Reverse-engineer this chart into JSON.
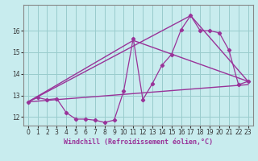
{
  "xlabel": "Windchill (Refroidissement éolien,°C)",
  "bg_color": "#c8ecee",
  "grid_color": "#99cccc",
  "line_color": "#993399",
  "xlim": [
    -0.5,
    23.5
  ],
  "ylim": [
    11.6,
    17.2
  ],
  "yticks": [
    12,
    13,
    14,
    15,
    16
  ],
  "xticks": [
    0,
    1,
    2,
    3,
    4,
    5,
    6,
    7,
    8,
    9,
    10,
    11,
    12,
    13,
    14,
    15,
    16,
    17,
    18,
    19,
    20,
    21,
    22,
    23
  ],
  "series1_x": [
    0,
    1,
    2,
    3,
    4,
    5,
    6,
    7,
    8,
    9,
    10,
    11,
    12,
    13,
    14,
    15,
    16,
    17,
    18,
    19,
    20,
    21,
    22,
    23
  ],
  "series1_y": [
    12.7,
    12.9,
    12.8,
    12.85,
    12.2,
    11.9,
    11.9,
    11.85,
    11.75,
    11.85,
    13.2,
    15.65,
    12.8,
    13.55,
    14.4,
    14.9,
    16.05,
    16.7,
    16.0,
    16.0,
    15.9,
    15.1,
    13.5,
    13.65
  ],
  "trend1_x": [
    0,
    23
  ],
  "trend1_y": [
    12.7,
    13.5
  ],
  "trend2_x": [
    0,
    11,
    23
  ],
  "trend2_y": [
    12.7,
    15.55,
    13.65
  ],
  "trend3_x": [
    0,
    17,
    23
  ],
  "trend3_y": [
    12.7,
    16.7,
    13.65
  ]
}
